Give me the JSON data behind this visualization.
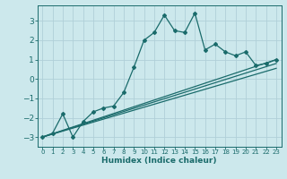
{
  "xlabel": "Humidex (Indice chaleur)",
  "ylabel": "",
  "background_color": "#cce8ec",
  "grid_color": "#b0d0d8",
  "line_color": "#1a6b6b",
  "xlim": [
    -0.5,
    23.5
  ],
  "ylim": [
    -3.5,
    3.8
  ],
  "xticks": [
    0,
    1,
    2,
    3,
    4,
    5,
    6,
    7,
    8,
    9,
    10,
    11,
    12,
    13,
    14,
    15,
    16,
    17,
    18,
    19,
    20,
    21,
    22,
    23
  ],
  "yticks": [
    -3,
    -2,
    -1,
    0,
    1,
    2,
    3
  ],
  "series1_x": [
    0,
    1,
    2,
    3,
    4,
    5,
    6,
    7,
    8,
    9,
    10,
    11,
    12,
    13,
    14,
    15,
    16,
    17,
    18,
    19,
    20,
    21,
    22,
    23
  ],
  "series1_y": [
    -3.0,
    -2.8,
    -1.8,
    -3.0,
    -2.2,
    -1.7,
    -1.5,
    -1.4,
    -0.7,
    0.6,
    2.0,
    2.4,
    3.3,
    2.5,
    2.4,
    3.4,
    1.5,
    1.8,
    1.4,
    1.2,
    1.4,
    0.7,
    0.8,
    1.0
  ],
  "series2_x": [
    0,
    23
  ],
  "series2_y": [
    -3.0,
    1.0
  ],
  "series3_x": [
    0,
    23
  ],
  "series3_y": [
    -3.0,
    0.8
  ],
  "series4_x": [
    0,
    23
  ],
  "series4_y": [
    -3.0,
    0.55
  ]
}
